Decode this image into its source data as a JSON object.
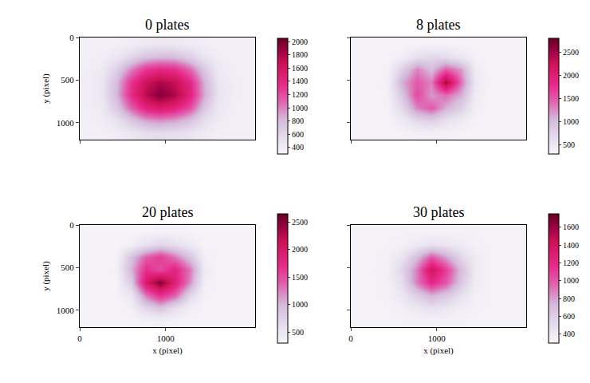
{
  "chart_data": [
    {
      "type": "heatmap",
      "title": "0 plates",
      "ylabel": "y (pixel)",
      "tick_labels": "y",
      "xlim": [
        0,
        2040
      ],
      "ylim": [
        1200,
        0
      ],
      "xticks": [
        0,
        1000
      ],
      "yticks": [
        0,
        500,
        1000
      ],
      "x": [
        85,
        255,
        425,
        595,
        765,
        935,
        1105,
        1275,
        1445,
        1615,
        1785,
        1955
      ],
      "y": [
        75,
        225,
        375,
        525,
        675,
        825,
        975,
        1125
      ],
      "z": [
        [
          350,
          350,
          360,
          380,
          420,
          440,
          430,
          400,
          370,
          350,
          350,
          350
        ],
        [
          360,
          380,
          450,
          600,
          750,
          800,
          780,
          650,
          480,
          380,
          360,
          350
        ],
        [
          370,
          420,
          650,
          1000,
          1300,
          1400,
          1350,
          1100,
          700,
          430,
          370,
          350
        ],
        [
          380,
          460,
          800,
          1300,
          1650,
          1800,
          1700,
          1400,
          850,
          470,
          380,
          360
        ],
        [
          380,
          460,
          820,
          1350,
          1750,
          1950,
          1800,
          1450,
          880,
          480,
          380,
          360
        ],
        [
          370,
          430,
          700,
          1100,
          1450,
          1550,
          1450,
          1200,
          720,
          440,
          370,
          350
        ],
        [
          360,
          390,
          500,
          700,
          900,
          950,
          900,
          750,
          520,
          400,
          360,
          350
        ],
        [
          350,
          360,
          390,
          450,
          520,
          550,
          520,
          470,
          400,
          360,
          350,
          350
        ]
      ],
      "zlim": [
        300,
        2050
      ],
      "zticks": [
        400,
        600,
        800,
        1000,
        1200,
        1400,
        1600,
        1800,
        2000
      ]
    },
    {
      "type": "heatmap",
      "title": "8 plates",
      "tick_labels": false,
      "xlim": [
        0,
        2040
      ],
      "ylim": [
        1200,
        0
      ],
      "xticks": [
        0,
        1000
      ],
      "yticks": [
        0,
        500,
        1000
      ],
      "x": [
        85,
        255,
        425,
        595,
        765,
        935,
        1105,
        1275,
        1445,
        1615,
        1785,
        1955
      ],
      "y": [
        75,
        225,
        375,
        525,
        675,
        825,
        975,
        1125
      ],
      "z": [
        [
          330,
          330,
          330,
          330,
          340,
          350,
          350,
          340,
          330,
          330,
          330,
          330
        ],
        [
          330,
          330,
          340,
          400,
          600,
          700,
          650,
          500,
          360,
          330,
          330,
          330
        ],
        [
          330,
          330,
          360,
          800,
          1300,
          1000,
          1500,
          1200,
          450,
          330,
          330,
          330
        ],
        [
          330,
          330,
          380,
          1100,
          1500,
          1300,
          2500,
          1400,
          500,
          330,
          330,
          330
        ],
        [
          330,
          330,
          370,
          900,
          1600,
          1200,
          1400,
          1100,
          450,
          330,
          330,
          330
        ],
        [
          330,
          330,
          350,
          700,
          1300,
          1500,
          1100,
          800,
          400,
          330,
          330,
          330
        ],
        [
          330,
          330,
          340,
          450,
          700,
          800,
          600,
          450,
          350,
          330,
          330,
          330
        ],
        [
          330,
          330,
          330,
          340,
          360,
          380,
          360,
          340,
          330,
          330,
          330,
          330
        ]
      ],
      "zlim": [
        300,
        2800
      ],
      "zticks": [
        500,
        1000,
        1500,
        2000,
        2500
      ]
    },
    {
      "type": "heatmap",
      "title": "20 plates",
      "xlabel": "x (pixel)",
      "ylabel": "y (pixel)",
      "tick_labels": true,
      "xlim": [
        0,
        2040
      ],
      "ylim": [
        1200,
        0
      ],
      "xticks": [
        0,
        1000
      ],
      "yticks": [
        0,
        500,
        1000
      ],
      "x": [
        85,
        255,
        425,
        595,
        765,
        935,
        1105,
        1275,
        1445,
        1615,
        1785,
        1955
      ],
      "y": [
        75,
        225,
        375,
        525,
        675,
        825,
        975,
        1125
      ],
      "z": [
        [
          330,
          330,
          330,
          330,
          335,
          340,
          340,
          335,
          330,
          330,
          330,
          330
        ],
        [
          330,
          330,
          330,
          380,
          550,
          700,
          600,
          450,
          340,
          330,
          330,
          330
        ],
        [
          330,
          330,
          350,
          900,
          1400,
          1600,
          1300,
          900,
          400,
          330,
          330,
          330
        ],
        [
          330,
          330,
          360,
          1000,
          1700,
          1500,
          1800,
          1300,
          450,
          330,
          330,
          330
        ],
        [
          330,
          330,
          350,
          800,
          2000,
          2500,
          1900,
          1200,
          400,
          330,
          330,
          330
        ],
        [
          330,
          330,
          340,
          500,
          1300,
          1700,
          1400,
          700,
          360,
          330,
          330,
          330
        ],
        [
          330,
          330,
          330,
          380,
          700,
          900,
          600,
          400,
          340,
          330,
          330,
          330
        ],
        [
          330,
          330,
          330,
          330,
          350,
          360,
          340,
          330,
          330,
          330,
          330,
          330
        ]
      ],
      "zlim": [
        300,
        2650
      ],
      "zticks": [
        500,
        1000,
        1500,
        2000,
        2500
      ]
    },
    {
      "type": "heatmap",
      "title": "30 plates",
      "xlabel": "x (pixel)",
      "tick_labels": "x",
      "xlim": [
        0,
        2040
      ],
      "ylim": [
        1200,
        0
      ],
      "xticks": [
        0,
        1000
      ],
      "yticks": [
        0,
        500,
        1000
      ],
      "x": [
        85,
        255,
        425,
        595,
        765,
        935,
        1105,
        1275,
        1445,
        1615,
        1785,
        1955
      ],
      "y": [
        75,
        225,
        375,
        525,
        675,
        825,
        975,
        1125
      ],
      "z": [
        [
          330,
          330,
          330,
          330,
          330,
          330,
          330,
          330,
          330,
          330,
          330,
          330
        ],
        [
          330,
          330,
          330,
          340,
          400,
          450,
          430,
          380,
          340,
          330,
          330,
          330
        ],
        [
          330,
          330,
          340,
          450,
          700,
          1000,
          800,
          550,
          380,
          330,
          330,
          330
        ],
        [
          330,
          330,
          350,
          550,
          900,
          1400,
          1100,
          700,
          400,
          330,
          330,
          330
        ],
        [
          330,
          330,
          340,
          500,
          900,
          1200,
          1000,
          650,
          380,
          330,
          330,
          330
        ],
        [
          330,
          330,
          335,
          420,
          600,
          750,
          650,
          480,
          350,
          330,
          330,
          330
        ],
        [
          330,
          330,
          330,
          360,
          420,
          480,
          430,
          370,
          335,
          330,
          330,
          330
        ],
        [
          330,
          330,
          330,
          330,
          330,
          330,
          330,
          330,
          330,
          330,
          330,
          330
        ]
      ],
      "zlim": [
        300,
        1750
      ],
      "zticks": [
        400,
        600,
        800,
        1000,
        1200,
        1400,
        1600
      ]
    }
  ]
}
